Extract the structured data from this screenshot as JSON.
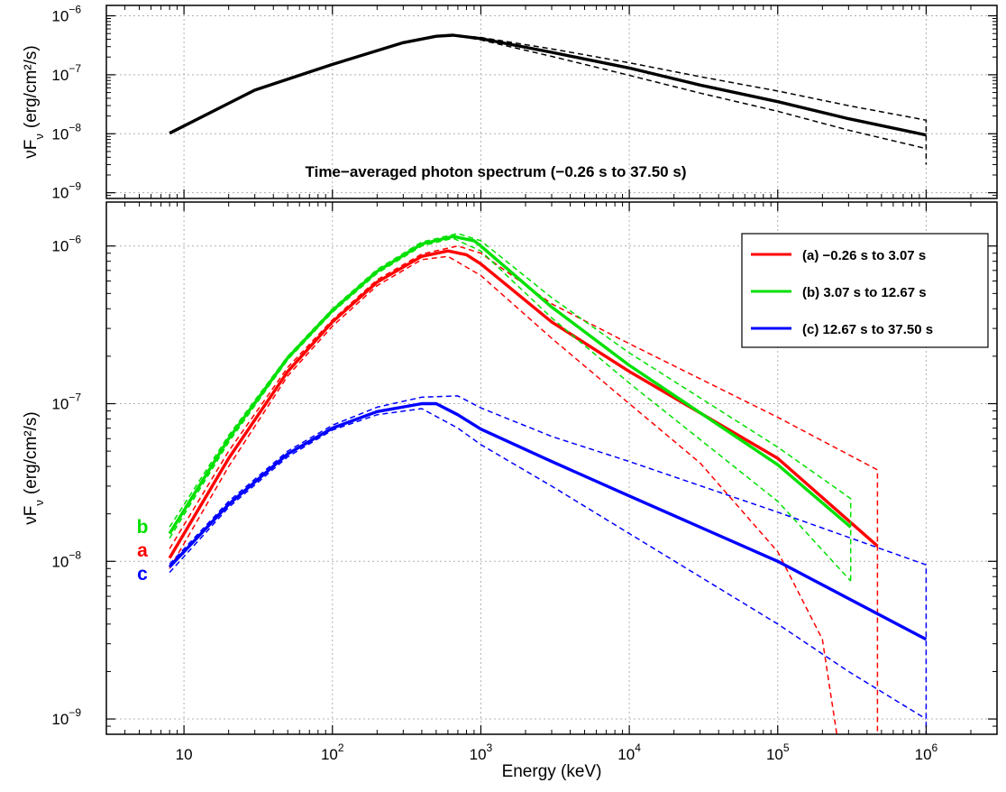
{
  "chart_data": [
    {
      "type": "line",
      "panel": "top",
      "x_scale": "log",
      "y_scale": "log",
      "xlim": [
        3,
        3000000
      ],
      "ylim": [
        8e-10,
        1.5e-06
      ],
      "ylabel": "νF",
      "ylabel_sub": "ν",
      "ylabel_unit": "(erg/cm²/s)",
      "annotation": "Time−averaged photon spectrum (−0.26 s to 37.50 s)",
      "yticks": [
        {
          "value": 1e-06,
          "label": "10",
          "exp": "−6"
        },
        {
          "value": 1e-07,
          "label": "10",
          "exp": "−7"
        },
        {
          "value": 1e-08,
          "label": "10",
          "exp": "−8"
        },
        {
          "value": 1e-09,
          "label": "10",
          "exp": "−9"
        }
      ],
      "grid": true,
      "series": [
        {
          "color": "#000000",
          "style": "solid",
          "points": [
            [
              8,
              1.02e-08
            ],
            [
              30,
              5.5e-08
            ],
            [
              100,
              1.5e-07
            ],
            [
              300,
              3.5e-07
            ],
            [
              500,
              4.5e-07
            ],
            [
              650,
              4.7e-07
            ],
            [
              1000,
              4.1e-07
            ],
            [
              3000,
              2.4e-07
            ],
            [
              10000,
              1.3e-07
            ],
            [
              30000,
              6.7e-08
            ],
            [
              100000,
              3.5e-08
            ],
            [
              300000,
              1.8e-08
            ],
            [
              1000000,
              9.5e-09
            ]
          ]
        },
        {
          "color": "#000000",
          "style": "dashed",
          "points": [
            [
              650,
              4.7e-07
            ],
            [
              1000,
              4.3e-07
            ],
            [
              3000,
              2.75e-07
            ],
            [
              10000,
              1.6e-07
            ],
            [
              30000,
              9.3e-08
            ],
            [
              100000,
              5.3e-08
            ],
            [
              300000,
              3e-08
            ],
            [
              1000000,
              1.7e-08
            ],
            [
              1000000,
              3e-09
            ]
          ]
        },
        {
          "color": "#000000",
          "style": "dashed",
          "points": [
            [
              650,
              4.7e-07
            ],
            [
              1000,
              3.9e-07
            ],
            [
              3000,
              2.05e-07
            ],
            [
              10000,
              9.8e-08
            ],
            [
              30000,
              4.9e-08
            ],
            [
              100000,
              2.4e-08
            ],
            [
              300000,
              1.15e-08
            ],
            [
              1000000,
              5.6e-09
            ]
          ]
        }
      ]
    },
    {
      "type": "line",
      "panel": "bottom",
      "x_scale": "log",
      "y_scale": "log",
      "xlim": [
        3,
        3000000
      ],
      "ylim": [
        8e-10,
        1.9e-06
      ],
      "xlabel": "Energy (keV)",
      "ylabel": "νF",
      "ylabel_sub": "ν",
      "ylabel_unit": "(erg/cm²/s)",
      "xticks": [
        {
          "value": 10,
          "label": "10",
          "exp": ""
        },
        {
          "value": 100,
          "label": "10",
          "exp": "2"
        },
        {
          "value": 1000,
          "label": "10",
          "exp": "3"
        },
        {
          "value": 10000,
          "label": "10",
          "exp": "4"
        },
        {
          "value": 100000,
          "label": "10",
          "exp": "5"
        },
        {
          "value": 1000000,
          "label": "10",
          "exp": "6"
        }
      ],
      "yticks": [
        {
          "value": 1e-06,
          "label": "10",
          "exp": "−6"
        },
        {
          "value": 1e-07,
          "label": "10",
          "exp": "−7"
        },
        {
          "value": 1e-08,
          "label": "10",
          "exp": "−8"
        },
        {
          "value": 1e-09,
          "label": "10",
          "exp": "−9"
        }
      ],
      "grid": true,
      "legend": {
        "placement": "top-right",
        "entries": [
          {
            "label": "(a) −0.26 s to 3.07 s",
            "color": "#ff0000"
          },
          {
            "label": "(b) 3.07 s to 12.67 s",
            "color": "#00e000"
          },
          {
            "label": "(c) 12.67 s to 37.50 s",
            "color": "#0000ff"
          }
        ]
      },
      "side_labels": [
        {
          "text": "b",
          "color": "#00e000"
        },
        {
          "text": "a",
          "color": "#ff0000"
        },
        {
          "text": "c",
          "color": "#0000ff"
        }
      ],
      "series": [
        {
          "name": "(a) −0.26 s to 3.07 s",
          "color": "#ff0000",
          "style": "solid",
          "points": [
            [
              8,
              1.05e-08
            ],
            [
              20,
              4.5e-08
            ],
            [
              50,
              1.6e-07
            ],
            [
              100,
              3.3e-07
            ],
            [
              200,
              5.9e-07
            ],
            [
              400,
              8.6e-07
            ],
            [
              600,
              9.3e-07
            ],
            [
              800,
              8.8e-07
            ],
            [
              1000,
              7.7e-07
            ],
            [
              3000,
              3.3e-07
            ],
            [
              10000,
              1.6e-07
            ],
            [
              100000,
              4.5e-08
            ],
            [
              470000,
              1.25e-08
            ]
          ]
        },
        {
          "color": "#ff0000",
          "style": "dashed",
          "points": [
            [
              8,
              1.2e-08
            ],
            [
              20,
              5e-08
            ],
            [
              50,
              1.7e-07
            ],
            [
              100,
              3.4e-07
            ],
            [
              200,
              6.1e-07
            ],
            [
              400,
              8.9e-07
            ],
            [
              700,
              1e-06
            ],
            [
              1000,
              9e-07
            ],
            [
              3000,
              4.3e-07
            ],
            [
              10000,
              2.4e-07
            ],
            [
              100000,
              8.2e-08
            ],
            [
              470000,
              3.8e-08
            ],
            [
              470000,
              2.6e-08
            ],
            [
              470000,
              8e-10
            ]
          ]
        },
        {
          "color": "#ff0000",
          "style": "dashed",
          "points": [
            [
              8,
              9e-09
            ],
            [
              20,
              4e-08
            ],
            [
              50,
              1.5e-07
            ],
            [
              100,
              3.1e-07
            ],
            [
              200,
              5.6e-07
            ],
            [
              400,
              8.2e-07
            ],
            [
              600,
              8.6e-07
            ],
            [
              1000,
              6.5e-07
            ],
            [
              3000,
              2.6e-07
            ],
            [
              10000,
              1e-07
            ],
            [
              30000,
              4.2e-08
            ],
            [
              100000,
              1.15e-08
            ],
            [
              200000,
              3.2e-09
            ],
            [
              250000,
              8e-10
            ]
          ]
        },
        {
          "name": "(b) 3.07 s to 12.67 s",
          "color": "#00e000",
          "style": "solid",
          "points": [
            [
              8,
              1.5e-08
            ],
            [
              20,
              6e-08
            ],
            [
              50,
              1.95e-07
            ],
            [
              100,
              3.9e-07
            ],
            [
              200,
              6.9e-07
            ],
            [
              400,
              1.03e-06
            ],
            [
              650,
              1.15e-06
            ],
            [
              900,
              1.08e-06
            ],
            [
              1000,
              1e-06
            ],
            [
              3000,
              4.1e-07
            ],
            [
              10000,
              1.75e-07
            ],
            [
              100000,
              4.1e-08
            ],
            [
              310000,
              1.65e-08
            ]
          ]
        },
        {
          "color": "#00e000",
          "style": "dashed",
          "points": [
            [
              8,
              1.65e-08
            ],
            [
              20,
              6.3e-08
            ],
            [
              50,
              2e-07
            ],
            [
              100,
              4e-07
            ],
            [
              200,
              7.1e-07
            ],
            [
              400,
              1.06e-06
            ],
            [
              700,
              1.2e-06
            ],
            [
              1000,
              1.08e-06
            ],
            [
              3000,
              4.7e-07
            ],
            [
              10000,
              2.1e-07
            ],
            [
              100000,
              5.3e-08
            ],
            [
              310000,
              2.5e-08
            ],
            [
              310000,
              7.5e-09
            ]
          ]
        },
        {
          "color": "#00e000",
          "style": "dashed",
          "points": [
            [
              8,
              1.4e-08
            ],
            [
              20,
              5.7e-08
            ],
            [
              50,
              1.9e-07
            ],
            [
              100,
              3.8e-07
            ],
            [
              200,
              6.7e-07
            ],
            [
              400,
              1e-06
            ],
            [
              650,
              1.12e-06
            ],
            [
              1000,
              9.3e-07
            ],
            [
              3000,
              3.5e-07
            ],
            [
              10000,
              1.35e-07
            ],
            [
              100000,
              2.4e-08
            ],
            [
              310000,
              7.5e-09
            ]
          ]
        },
        {
          "name": "(c) 12.67 s to 37.50 s",
          "color": "#0000ff",
          "style": "solid",
          "points": [
            [
              8,
              9.2e-09
            ],
            [
              20,
              2.3e-08
            ],
            [
              50,
              4.8e-08
            ],
            [
              100,
              7e-08
            ],
            [
              200,
              8.9e-08
            ],
            [
              400,
              1e-07
            ],
            [
              500,
              1e-07
            ],
            [
              700,
              8.5e-08
            ],
            [
              1000,
              6.9e-08
            ],
            [
              3000,
              4.3e-08
            ],
            [
              10000,
              2.6e-08
            ],
            [
              100000,
              1e-08
            ],
            [
              1000000,
              3.2e-09
            ]
          ]
        },
        {
          "color": "#0000ff",
          "style": "dashed",
          "points": [
            [
              8,
              9.6e-09
            ],
            [
              20,
              2.4e-08
            ],
            [
              50,
              5e-08
            ],
            [
              100,
              7.3e-08
            ],
            [
              200,
              9.5e-08
            ],
            [
              400,
              1.1e-07
            ],
            [
              700,
              1.12e-07
            ],
            [
              1000,
              9.4e-08
            ],
            [
              3000,
              6.2e-08
            ],
            [
              10000,
              4.3e-08
            ],
            [
              100000,
              2.05e-08
            ],
            [
              1000000,
              9.5e-09
            ],
            [
              1000000,
              6e-09
            ],
            [
              1000000,
              8e-10
            ]
          ]
        },
        {
          "color": "#0000ff",
          "style": "dashed",
          "points": [
            [
              8,
              8.5e-09
            ],
            [
              20,
              2.2e-08
            ],
            [
              50,
              4.6e-08
            ],
            [
              100,
              6.8e-08
            ],
            [
              200,
              8.5e-08
            ],
            [
              400,
              9.3e-08
            ],
            [
              700,
              7e-08
            ],
            [
              1000,
              5.5e-08
            ],
            [
              3000,
              3e-08
            ],
            [
              10000,
              1.5e-08
            ],
            [
              100000,
              4e-09
            ],
            [
              300000,
              2e-09
            ],
            [
              1000000,
              1e-09
            ]
          ]
        }
      ]
    }
  ]
}
